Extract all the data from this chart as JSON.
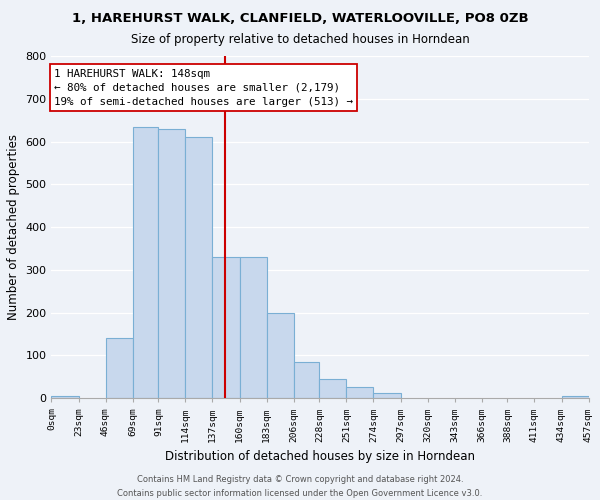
{
  "title": "1, HAREHURST WALK, CLANFIELD, WATERLOOVILLE, PO8 0ZB",
  "subtitle": "Size of property relative to detached houses in Horndean",
  "xlabel": "Distribution of detached houses by size in Horndean",
  "ylabel": "Number of detached properties",
  "bar_color": "#c8d8ed",
  "bar_edge_color": "#7aafd4",
  "vline_x": 148,
  "vline_color": "#cc0000",
  "annotation_title": "1 HAREHURST WALK: 148sqm",
  "annotation_line1": "← 80% of detached houses are smaller (2,179)",
  "annotation_line2": "19% of semi-detached houses are larger (513) →",
  "bin_edges": [
    0,
    23,
    46,
    69,
    91,
    114,
    137,
    160,
    183,
    206,
    228,
    251,
    274,
    297,
    320,
    343,
    366,
    388,
    411,
    434,
    457
  ],
  "bin_counts": [
    5,
    0,
    140,
    635,
    630,
    610,
    330,
    330,
    200,
    85,
    45,
    27,
    13,
    0,
    0,
    0,
    0,
    0,
    0,
    5
  ],
  "ylim": [
    0,
    800
  ],
  "yticks": [
    0,
    100,
    200,
    300,
    400,
    500,
    600,
    700,
    800
  ],
  "footer_line1": "Contains HM Land Registry data © Crown copyright and database right 2024.",
  "footer_line2": "Contains public sector information licensed under the Open Government Licence v3.0.",
  "background_color": "#eef2f8"
}
